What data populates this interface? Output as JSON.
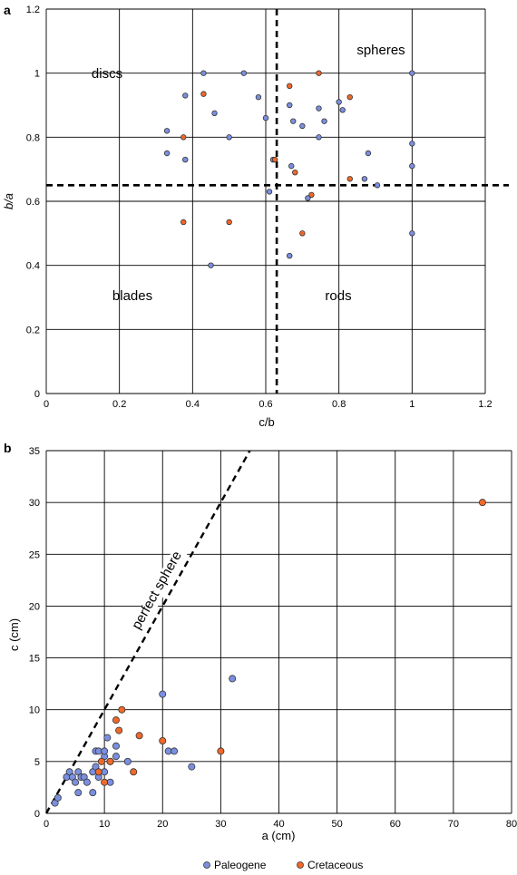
{
  "colors": {
    "paleogene": "#7b8fe0",
    "cretaceous": "#f0692a",
    "grid": "#000000"
  },
  "chart_data": [
    {
      "panel_label": "a",
      "type": "scatter",
      "xlabel": "c/b",
      "ylabel": "b/a",
      "xlim": [
        0,
        1.2
      ],
      "ylim": [
        0,
        1.2
      ],
      "xticks": [
        "0",
        "0.2",
        "0.4",
        "0.6",
        "0.8",
        "1",
        "1.2"
      ],
      "yticks": [
        "0",
        "0.2",
        "0.4",
        "0.6",
        "0.8",
        "1",
        "1.2"
      ],
      "grid": true,
      "thresholds": {
        "x": 0.63,
        "y": 0.65
      },
      "region_labels": {
        "discs": "discs",
        "spheres": "spheres",
        "blades": "blades",
        "rods": "rods"
      },
      "series": [
        {
          "key": "paleogene",
          "points": [
            [
              0.33,
              0.82
            ],
            [
              0.33,
              0.75
            ],
            [
              0.38,
              0.73
            ],
            [
              0.38,
              0.93
            ],
            [
              0.43,
              1.0
            ],
            [
              0.46,
              0.875
            ],
            [
              0.5,
              0.8
            ],
            [
              0.54,
              1.0
            ],
            [
              0.58,
              0.925
            ],
            [
              0.6,
              0.86
            ],
            [
              0.61,
              0.63
            ],
            [
              0.62,
              0.73
            ],
            [
              0.665,
              0.9
            ],
            [
              0.67,
              0.71
            ],
            [
              0.675,
              0.85
            ],
            [
              0.7,
              0.835
            ],
            [
              0.715,
              0.61
            ],
            [
              0.745,
              0.89
            ],
            [
              0.745,
              0.8
            ],
            [
              0.76,
              0.85
            ],
            [
              0.8,
              0.91
            ],
            [
              0.81,
              0.885
            ],
            [
              0.87,
              0.67
            ],
            [
              0.88,
              0.75
            ],
            [
              0.905,
              0.65
            ],
            [
              1.0,
              1.0
            ],
            [
              1.0,
              0.78
            ],
            [
              1.0,
              0.71
            ],
            [
              1.0,
              0.5
            ],
            [
              0.45,
              0.4
            ],
            [
              0.665,
              0.43
            ]
          ]
        },
        {
          "key": "cretaceous",
          "points": [
            [
              0.375,
              0.535
            ],
            [
              0.375,
              0.8
            ],
            [
              0.43,
              0.935
            ],
            [
              0.5,
              0.535
            ],
            [
              0.625,
              0.73
            ],
            [
              0.665,
              0.96
            ],
            [
              0.68,
              0.69
            ],
            [
              0.7,
              0.5
            ],
            [
              0.725,
              0.62
            ],
            [
              0.745,
              1.0
            ],
            [
              0.83,
              0.67
            ],
            [
              0.83,
              0.925
            ]
          ]
        }
      ]
    },
    {
      "panel_label": "b",
      "type": "scatter",
      "xlabel": "a (cm)",
      "ylabel": "c (cm)",
      "xlim": [
        0,
        80
      ],
      "ylim": [
        0,
        35
      ],
      "xticks": [
        "0",
        "10",
        "20",
        "30",
        "40",
        "50",
        "60",
        "70",
        "80"
      ],
      "yticks": [
        "0",
        "5",
        "10",
        "15",
        "20",
        "25",
        "30",
        "35"
      ],
      "grid": true,
      "annotation": "perfect sphere",
      "legend": [
        "Paleogene",
        "Cretaceous"
      ],
      "legend_position": "bottom",
      "series": [
        {
          "key": "paleogene",
          "name": "Paleogene",
          "points": [
            [
              1.5,
              1
            ],
            [
              2,
              1.5
            ],
            [
              3.5,
              3.5
            ],
            [
              4,
              4
            ],
            [
              4.5,
              3.5
            ],
            [
              5,
              3
            ],
            [
              5.5,
              4
            ],
            [
              5.5,
              2
            ],
            [
              6,
              3.5
            ],
            [
              6.5,
              3.5
            ],
            [
              7,
              3
            ],
            [
              8,
              2
            ],
            [
              8,
              4
            ],
            [
              8.5,
              4.5
            ],
            [
              8.5,
              6
            ],
            [
              9,
              3.5
            ],
            [
              9,
              6
            ],
            [
              10,
              4
            ],
            [
              10,
              5.5
            ],
            [
              10,
              6
            ],
            [
              10.5,
              7.3
            ],
            [
              11,
              3
            ],
            [
              11,
              5
            ],
            [
              12,
              6.5
            ],
            [
              12,
              5.5
            ],
            [
              14,
              5
            ],
            [
              20,
              11.5
            ],
            [
              21,
              6
            ],
            [
              22,
              6
            ],
            [
              25,
              4.5
            ],
            [
              32,
              13
            ]
          ]
        },
        {
          "key": "cretaceous",
          "name": "Cretaceous",
          "points": [
            [
              9,
              4
            ],
            [
              9.5,
              5
            ],
            [
              10,
              3
            ],
            [
              11,
              5
            ],
            [
              12,
              9
            ],
            [
              12.5,
              8
            ],
            [
              13,
              10
            ],
            [
              15,
              4
            ],
            [
              16,
              7.5
            ],
            [
              20,
              7
            ],
            [
              30,
              6
            ],
            [
              75,
              30
            ]
          ]
        }
      ]
    }
  ]
}
